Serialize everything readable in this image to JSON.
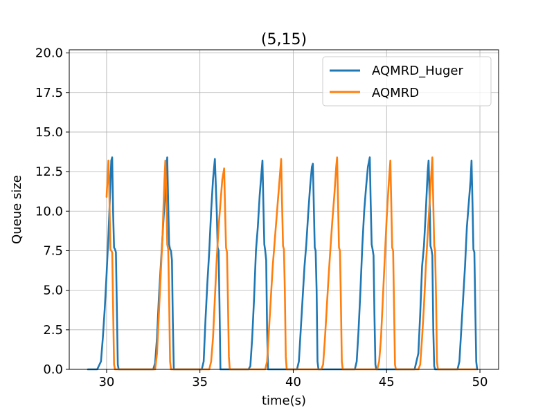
{
  "chart_data": {
    "type": "line",
    "title": "(5,15)",
    "xlabel": "time(s)",
    "ylabel": "Queue size",
    "xlim": [
      28.0,
      51.0
    ],
    "ylim": [
      0.0,
      20.2
    ],
    "xticks": [
      30,
      35,
      40,
      45,
      50
    ],
    "xtick_labels": [
      "30",
      "35",
      "40",
      "45",
      "50"
    ],
    "yticks": [
      0.0,
      2.5,
      5.0,
      7.5,
      10.0,
      12.5,
      15.0,
      17.5,
      20.0
    ],
    "ytick_labels": [
      "0.0",
      "2.5",
      "5.0",
      "7.5",
      "10.0",
      "12.5",
      "15.0",
      "17.5",
      "20.0"
    ],
    "grid": true,
    "legend_position": "top-right",
    "series": [
      {
        "name": "AQMRD_Huger",
        "color": "#1f77b4",
        "points": [
          [
            29.0,
            0
          ],
          [
            29.5,
            0
          ],
          [
            29.7,
            0.5
          ],
          [
            29.8,
            2.0
          ],
          [
            29.9,
            3.8
          ],
          [
            30.0,
            6.0
          ],
          [
            30.1,
            8.5
          ],
          [
            30.15,
            10.0
          ],
          [
            30.2,
            11.5
          ],
          [
            30.25,
            13.2
          ],
          [
            30.3,
            13.4
          ],
          [
            30.35,
            10.0
          ],
          [
            30.4,
            7.7
          ],
          [
            30.45,
            7.6
          ],
          [
            30.5,
            7.4
          ],
          [
            30.55,
            4.0
          ],
          [
            30.6,
            0.3
          ],
          [
            30.65,
            0
          ],
          [
            32.5,
            0
          ],
          [
            32.6,
            0.4
          ],
          [
            32.7,
            2.0
          ],
          [
            32.8,
            4.5
          ],
          [
            32.9,
            6.5
          ],
          [
            33.0,
            8.5
          ],
          [
            33.1,
            10.5
          ],
          [
            33.2,
            12.5
          ],
          [
            33.25,
            13.4
          ],
          [
            33.3,
            10.5
          ],
          [
            33.35,
            7.9
          ],
          [
            33.4,
            7.6
          ],
          [
            33.45,
            7.5
          ],
          [
            33.5,
            6.9
          ],
          [
            33.55,
            3.0
          ],
          [
            33.6,
            0
          ],
          [
            35.1,
            0
          ],
          [
            35.2,
            0.5
          ],
          [
            35.3,
            3.2
          ],
          [
            35.4,
            5.5
          ],
          [
            35.5,
            7.5
          ],
          [
            35.6,
            10.0
          ],
          [
            35.7,
            12.0
          ],
          [
            35.8,
            13.3
          ],
          [
            35.9,
            10.0
          ],
          [
            35.95,
            7.7
          ],
          [
            36.0,
            7.5
          ],
          [
            36.05,
            4.0
          ],
          [
            36.1,
            0
          ],
          [
            37.6,
            0
          ],
          [
            37.7,
            0.2
          ],
          [
            37.8,
            2.0
          ],
          [
            37.9,
            4.5
          ],
          [
            38.0,
            7.5
          ],
          [
            38.1,
            9.0
          ],
          [
            38.2,
            11.0
          ],
          [
            38.3,
            12.5
          ],
          [
            38.35,
            13.2
          ],
          [
            38.4,
            10.5
          ],
          [
            38.45,
            7.9
          ],
          [
            38.5,
            7.5
          ],
          [
            38.55,
            6.9
          ],
          [
            38.6,
            2.5
          ],
          [
            38.65,
            0
          ],
          [
            40.2,
            0
          ],
          [
            40.3,
            0.5
          ],
          [
            40.4,
            2.5
          ],
          [
            40.5,
            4.5
          ],
          [
            40.6,
            6.5
          ],
          [
            40.7,
            7.9
          ],
          [
            40.8,
            9.8
          ],
          [
            40.9,
            11.5
          ],
          [
            41.0,
            12.8
          ],
          [
            41.05,
            13.0
          ],
          [
            41.1,
            10.5
          ],
          [
            41.15,
            7.7
          ],
          [
            41.2,
            7.5
          ],
          [
            41.25,
            5.0
          ],
          [
            41.3,
            0.5
          ],
          [
            41.35,
            0
          ],
          [
            43.3,
            0
          ],
          [
            43.4,
            0.5
          ],
          [
            43.5,
            2.5
          ],
          [
            43.6,
            5.0
          ],
          [
            43.7,
            7.8
          ],
          [
            43.8,
            10.0
          ],
          [
            43.9,
            11.5
          ],
          [
            44.0,
            12.8
          ],
          [
            44.1,
            13.4
          ],
          [
            44.15,
            10.5
          ],
          [
            44.2,
            7.9
          ],
          [
            44.25,
            7.6
          ],
          [
            44.3,
            7.2
          ],
          [
            44.35,
            3.5
          ],
          [
            44.4,
            0.3
          ],
          [
            44.45,
            0
          ],
          [
            46.5,
            0
          ],
          [
            46.6,
            0.5
          ],
          [
            46.7,
            1.0
          ],
          [
            46.8,
            3.5
          ],
          [
            46.9,
            6.5
          ],
          [
            47.0,
            7.8
          ],
          [
            47.1,
            10.0
          ],
          [
            47.2,
            12.5
          ],
          [
            47.25,
            13.2
          ],
          [
            47.3,
            11.0
          ],
          [
            47.35,
            7.8
          ],
          [
            47.4,
            7.6
          ],
          [
            47.45,
            7.2
          ],
          [
            47.5,
            2.5
          ],
          [
            47.55,
            0.2
          ],
          [
            47.6,
            0
          ],
          [
            48.8,
            0
          ],
          [
            48.9,
            0.5
          ],
          [
            49.0,
            2.5
          ],
          [
            49.1,
            4.5
          ],
          [
            49.2,
            6.5
          ],
          [
            49.3,
            9.0
          ],
          [
            49.4,
            10.5
          ],
          [
            49.5,
            12.0
          ],
          [
            49.55,
            13.2
          ],
          [
            49.6,
            10.5
          ],
          [
            49.65,
            7.6
          ],
          [
            49.7,
            7.4
          ],
          [
            49.75,
            4.0
          ],
          [
            49.8,
            0.5
          ],
          [
            49.85,
            0
          ]
        ]
      },
      {
        "name": "AQMRD",
        "color": "#ff7f0e",
        "points": [
          [
            30.0,
            10.9
          ],
          [
            30.1,
            13.2
          ],
          [
            30.15,
            11.0
          ],
          [
            30.2,
            7.6
          ],
          [
            30.25,
            7.5
          ],
          [
            30.3,
            7.4
          ],
          [
            30.35,
            4.0
          ],
          [
            30.4,
            0.3
          ],
          [
            30.45,
            0
          ],
          [
            32.6,
            0
          ],
          [
            32.7,
            1.0
          ],
          [
            32.8,
            3.5
          ],
          [
            32.9,
            6.0
          ],
          [
            33.0,
            8.5
          ],
          [
            33.05,
            10.3
          ],
          [
            33.1,
            12.0
          ],
          [
            33.15,
            13.2
          ],
          [
            33.2,
            11.0
          ],
          [
            33.25,
            7.9
          ],
          [
            33.3,
            7.6
          ],
          [
            33.35,
            4.5
          ],
          [
            33.4,
            0.5
          ],
          [
            33.45,
            0
          ],
          [
            35.5,
            0
          ],
          [
            35.6,
            0.5
          ],
          [
            35.7,
            2.0
          ],
          [
            35.8,
            4.5
          ],
          [
            35.9,
            7.0
          ],
          [
            36.0,
            9.0
          ],
          [
            36.1,
            10.5
          ],
          [
            36.2,
            12.0
          ],
          [
            36.3,
            12.7
          ],
          [
            36.35,
            10.0
          ],
          [
            36.4,
            7.7
          ],
          [
            36.45,
            7.4
          ],
          [
            36.5,
            4.5
          ],
          [
            36.55,
            0.8
          ],
          [
            36.6,
            0
          ],
          [
            38.5,
            0
          ],
          [
            38.6,
            0.5
          ],
          [
            38.7,
            2.5
          ],
          [
            38.8,
            4.5
          ],
          [
            38.9,
            6.5
          ],
          [
            39.0,
            8.0
          ],
          [
            39.1,
            9.5
          ],
          [
            39.2,
            11.0
          ],
          [
            39.3,
            12.5
          ],
          [
            39.35,
            13.3
          ],
          [
            39.4,
            10.5
          ],
          [
            39.45,
            7.8
          ],
          [
            39.5,
            7.6
          ],
          [
            39.55,
            5.0
          ],
          [
            39.6,
            0.8
          ],
          [
            39.65,
            0
          ],
          [
            41.5,
            0
          ],
          [
            41.6,
            0.3
          ],
          [
            41.7,
            2.0
          ],
          [
            41.8,
            4.0
          ],
          [
            41.9,
            6.0
          ],
          [
            42.0,
            7.8
          ],
          [
            42.1,
            9.5
          ],
          [
            42.2,
            11.0
          ],
          [
            42.3,
            12.8
          ],
          [
            42.35,
            13.4
          ],
          [
            42.4,
            10.5
          ],
          [
            42.45,
            7.7
          ],
          [
            42.5,
            7.5
          ],
          [
            42.55,
            4.5
          ],
          [
            42.6,
            0.5
          ],
          [
            42.65,
            0
          ],
          [
            44.5,
            0
          ],
          [
            44.6,
            0.5
          ],
          [
            44.7,
            2.0
          ],
          [
            44.8,
            4.5
          ],
          [
            44.9,
            7.0
          ],
          [
            45.0,
            9.5
          ],
          [
            45.1,
            11.5
          ],
          [
            45.2,
            13.2
          ],
          [
            45.25,
            10.5
          ],
          [
            45.3,
            7.7
          ],
          [
            45.35,
            7.5
          ],
          [
            45.4,
            4.0
          ],
          [
            45.45,
            0.3
          ],
          [
            45.5,
            0
          ],
          [
            46.7,
            0
          ],
          [
            46.8,
            0.3
          ],
          [
            46.9,
            2.0
          ],
          [
            47.0,
            4.0
          ],
          [
            47.1,
            6.5
          ],
          [
            47.2,
            8.5
          ],
          [
            47.3,
            10.5
          ],
          [
            47.4,
            12.5
          ],
          [
            47.45,
            13.4
          ],
          [
            47.5,
            10.5
          ],
          [
            47.55,
            7.8
          ],
          [
            47.6,
            7.5
          ],
          [
            47.65,
            4.5
          ],
          [
            47.7,
            0.5
          ],
          [
            47.75,
            0
          ],
          [
            49.8,
            0
          ]
        ]
      }
    ]
  }
}
